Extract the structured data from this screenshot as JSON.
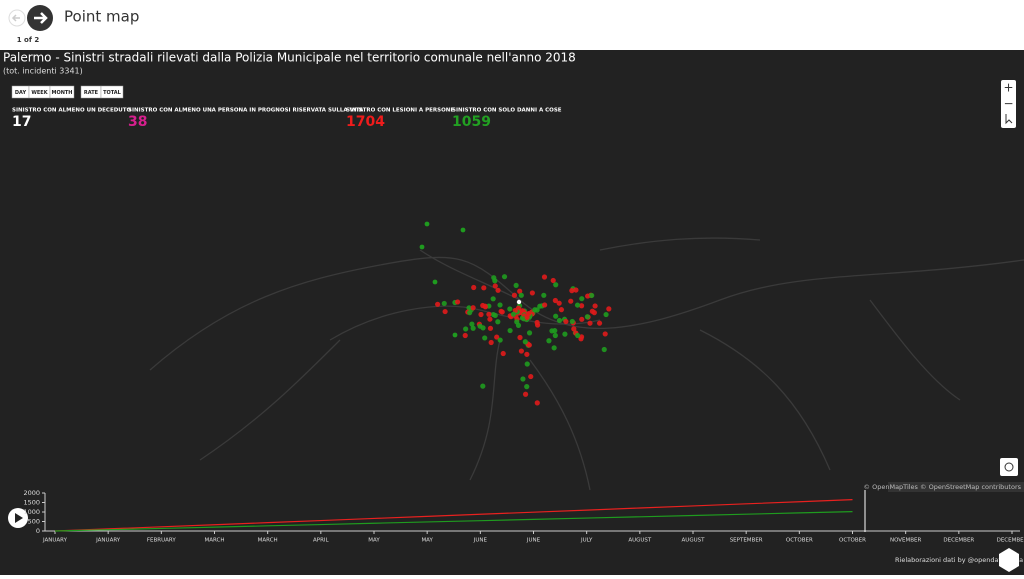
{
  "header": {
    "title": "Point map",
    "pager": "1 of 2"
  },
  "map": {
    "title": "Palermo - Sinistri stradali rilevati dalla Polizia Municipale nel territorio comunale nell'anno 2018",
    "subtitle": "(tot. incidenti 3341)",
    "period_buttons": [
      "DAY",
      "WEEK",
      "MONTH"
    ],
    "mode_buttons": [
      "RATE",
      "TOTAL"
    ],
    "stats": [
      {
        "label": "SINISTRO CON ALMENO UN DECEDUTO",
        "value": 17,
        "color": "#ffffff"
      },
      {
        "label": "SINISTRO CON ALMENO UNA PERSONA IN PROGNOSI RISERVATA SULLA VITA",
        "value": 38,
        "color": "#d6208e"
      },
      {
        "label": "SINISTRO CON LESIONI A PERSONE",
        "value": 1704,
        "color": "#ee1c1c"
      },
      {
        "label": "SINISTRO CON SOLO DANNI A COSE",
        "value": 1059,
        "color": "#22a022"
      }
    ],
    "attribution": "© OpenMapTiles © OpenStreetMap contributors",
    "credit": "Rielaborazioni dati by @opendatasicilia"
  },
  "timeline": {
    "type": "line",
    "x": [
      "JANUARY",
      "JANUARY",
      "FEBRUARY",
      "MARCH",
      "MARCH",
      "APRIL",
      "MAY",
      "MAY",
      "JUNE",
      "JUNE",
      "JULY",
      "AUGUST",
      "AUGUST",
      "SEPTEMBER",
      "OCTOBER",
      "OCTOBER",
      "NOVEMBER",
      "DECEMBER",
      "DECEMBER"
    ],
    "ylim": [
      0,
      2000
    ],
    "yticks": [
      0,
      500,
      1000,
      1500,
      2000
    ],
    "series": [
      {
        "color": "#e8211f",
        "values": [
          0,
          110,
          220,
          330,
          440,
          550,
          660,
          770,
          880,
          990,
          1100,
          1210,
          1320,
          1430,
          1540,
          1650,
          null,
          null,
          null
        ]
      },
      {
        "color": "#1f9b1f",
        "values": [
          0,
          68,
          136,
          204,
          272,
          340,
          408,
          476,
          544,
          612,
          680,
          748,
          816,
          884,
          952,
          1020,
          null,
          null,
          null
        ]
      }
    ]
  }
}
